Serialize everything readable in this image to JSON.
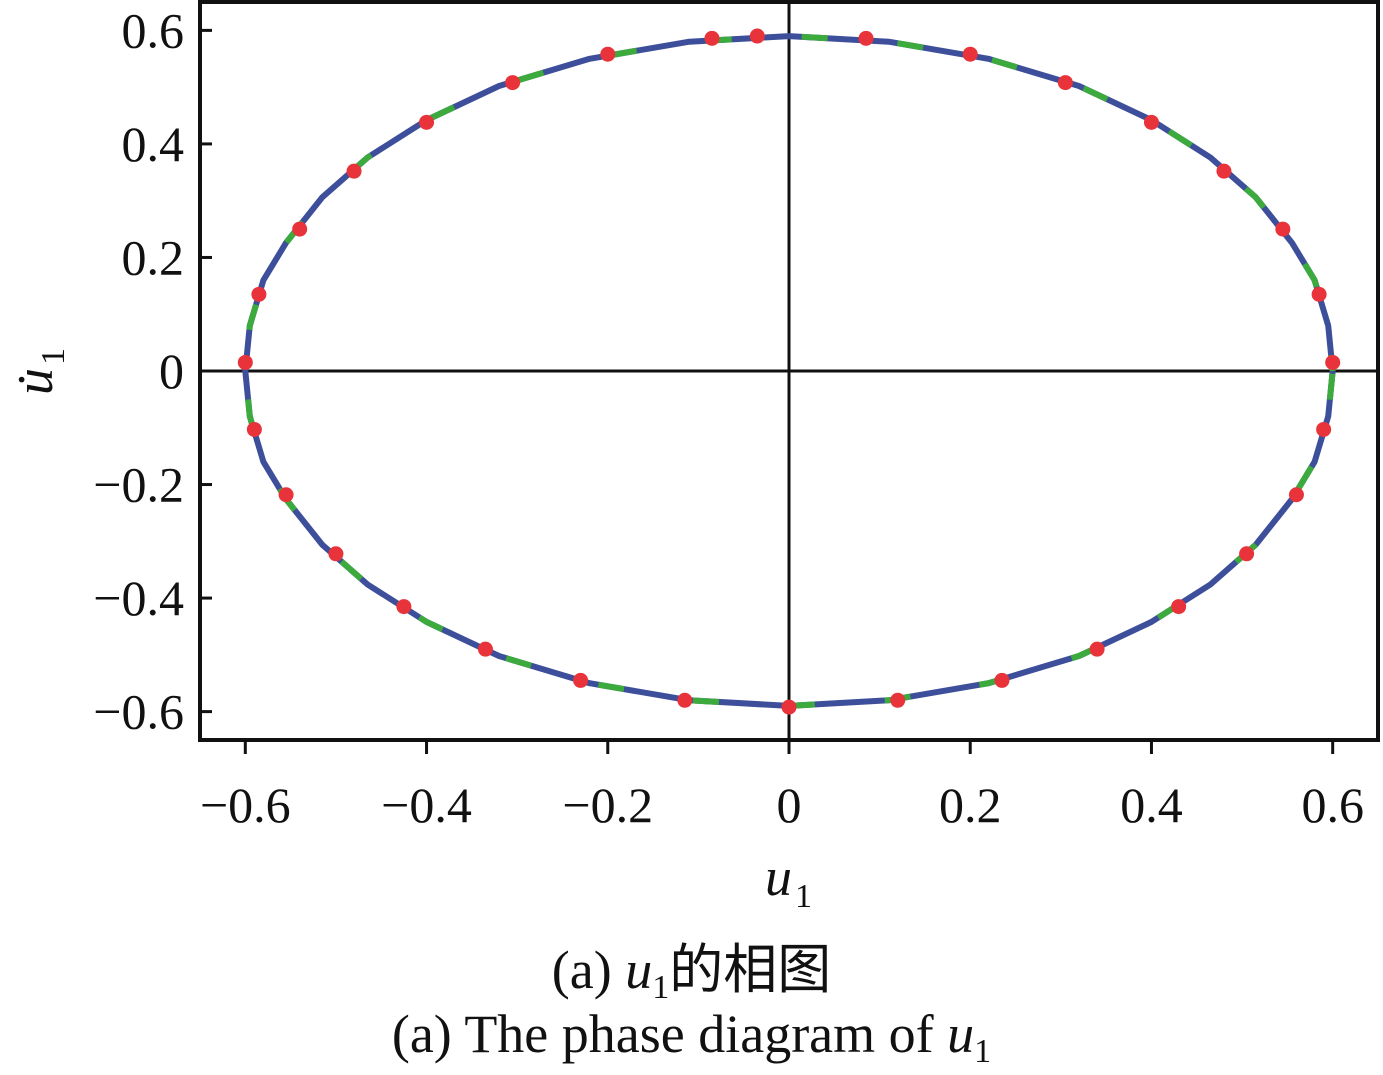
{
  "chart_data": {
    "type": "line",
    "xlabel": "u",
    "xlabel_sub": "1",
    "ylabel": "u̇",
    "ylabel_sub": "1",
    "xlim": [
      -0.65,
      0.65
    ],
    "ylim": [
      -0.65,
      0.65
    ],
    "xticks": [
      -0.6,
      -0.4,
      -0.2,
      0,
      0.2,
      0.4,
      0.6
    ],
    "xtick_labels": [
      "−0.6",
      "−0.4",
      "−0.2",
      "0",
      "0.2",
      "0.4",
      "0.6"
    ],
    "yticks": [
      -0.6,
      -0.4,
      -0.2,
      0,
      0.2,
      0.4,
      0.6
    ],
    "ytick_labels": [
      "−0.6",
      "−0.4",
      "−0.2",
      "0",
      "0.2",
      "0.4",
      "0.6"
    ],
    "zero_lines": true,
    "grid": false,
    "colors": {
      "curve_blue": "#3d4f9a",
      "curve_green": "#3daa3d",
      "points": "#e8333a"
    },
    "series": [
      {
        "values": [
          {
            "x": 0.6,
            "y": 0.0
          },
          {
            "x": 0.595,
            "y": 0.08
          },
          {
            "x": 0.58,
            "y": 0.16
          },
          {
            "x": 0.555,
            "y": 0.226
          },
          {
            "x": 0.515,
            "y": 0.306
          },
          {
            "x": 0.465,
            "y": 0.376
          },
          {
            "x": 0.4,
            "y": 0.442
          },
          {
            "x": 0.32,
            "y": 0.502
          },
          {
            "x": 0.22,
            "y": 0.55
          },
          {
            "x": 0.11,
            "y": 0.58
          },
          {
            "x": 0.0,
            "y": 0.59
          },
          {
            "x": -0.11,
            "y": 0.58
          },
          {
            "x": -0.22,
            "y": 0.55
          },
          {
            "x": -0.32,
            "y": 0.502
          },
          {
            "x": -0.4,
            "y": 0.442
          },
          {
            "x": -0.465,
            "y": 0.376
          },
          {
            "x": -0.515,
            "y": 0.306
          },
          {
            "x": -0.555,
            "y": 0.226
          },
          {
            "x": -0.58,
            "y": 0.16
          },
          {
            "x": -0.595,
            "y": 0.08
          },
          {
            "x": -0.6,
            "y": 0.0
          },
          {
            "x": -0.595,
            "y": -0.08
          },
          {
            "x": -0.58,
            "y": -0.16
          },
          {
            "x": -0.555,
            "y": -0.226
          },
          {
            "x": -0.515,
            "y": -0.306
          },
          {
            "x": -0.465,
            "y": -0.376
          },
          {
            "x": -0.4,
            "y": -0.442
          },
          {
            "x": -0.32,
            "y": -0.502
          },
          {
            "x": -0.22,
            "y": -0.55
          },
          {
            "x": -0.11,
            "y": -0.58
          },
          {
            "x": 0.0,
            "y": -0.59
          },
          {
            "x": 0.11,
            "y": -0.58
          },
          {
            "x": 0.22,
            "y": -0.55
          },
          {
            "x": 0.32,
            "y": -0.502
          },
          {
            "x": 0.4,
            "y": -0.442
          },
          {
            "x": 0.465,
            "y": -0.376
          },
          {
            "x": 0.515,
            "y": -0.306
          },
          {
            "x": 0.555,
            "y": -0.226
          },
          {
            "x": 0.58,
            "y": -0.16
          },
          {
            "x": 0.595,
            "y": -0.08
          },
          {
            "x": 0.6,
            "y": 0.0
          }
        ]
      },
      {
        "marker": "circle",
        "values": [
          {
            "x": 0.6,
            "y": 0.015
          },
          {
            "x": 0.585,
            "y": 0.135
          },
          {
            "x": 0.545,
            "y": 0.25
          },
          {
            "x": 0.48,
            "y": 0.352
          },
          {
            "x": 0.4,
            "y": 0.438
          },
          {
            "x": 0.305,
            "y": 0.508
          },
          {
            "x": 0.2,
            "y": 0.558
          },
          {
            "x": 0.085,
            "y": 0.586
          },
          {
            "x": -0.035,
            "y": 0.59
          },
          {
            "x": -0.085,
            "y": 0.586
          },
          {
            "x": -0.2,
            "y": 0.558
          },
          {
            "x": -0.305,
            "y": 0.508
          },
          {
            "x": -0.4,
            "y": 0.438
          },
          {
            "x": -0.48,
            "y": 0.352
          },
          {
            "x": -0.54,
            "y": 0.25
          },
          {
            "x": -0.585,
            "y": 0.135
          },
          {
            "x": -0.6,
            "y": 0.015
          },
          {
            "x": -0.59,
            "y": -0.103
          },
          {
            "x": -0.555,
            "y": -0.218
          },
          {
            "x": -0.5,
            "y": -0.322
          },
          {
            "x": -0.425,
            "y": -0.415
          },
          {
            "x": -0.335,
            "y": -0.49
          },
          {
            "x": -0.23,
            "y": -0.545
          },
          {
            "x": -0.115,
            "y": -0.58
          },
          {
            "x": 0.0,
            "y": -0.592
          },
          {
            "x": 0.12,
            "y": -0.58
          },
          {
            "x": 0.235,
            "y": -0.545
          },
          {
            "x": 0.34,
            "y": -0.49
          },
          {
            "x": 0.43,
            "y": -0.415
          },
          {
            "x": 0.505,
            "y": -0.322
          },
          {
            "x": 0.56,
            "y": -0.218
          },
          {
            "x": 0.59,
            "y": -0.103
          }
        ]
      }
    ]
  },
  "caption": {
    "zh_prefix": "(a) ",
    "zh_var": "u",
    "zh_sub": "1",
    "zh_suffix": "的相图",
    "en_prefix": "(a) The phase diagram of ",
    "en_var": "u",
    "en_sub": "1"
  }
}
